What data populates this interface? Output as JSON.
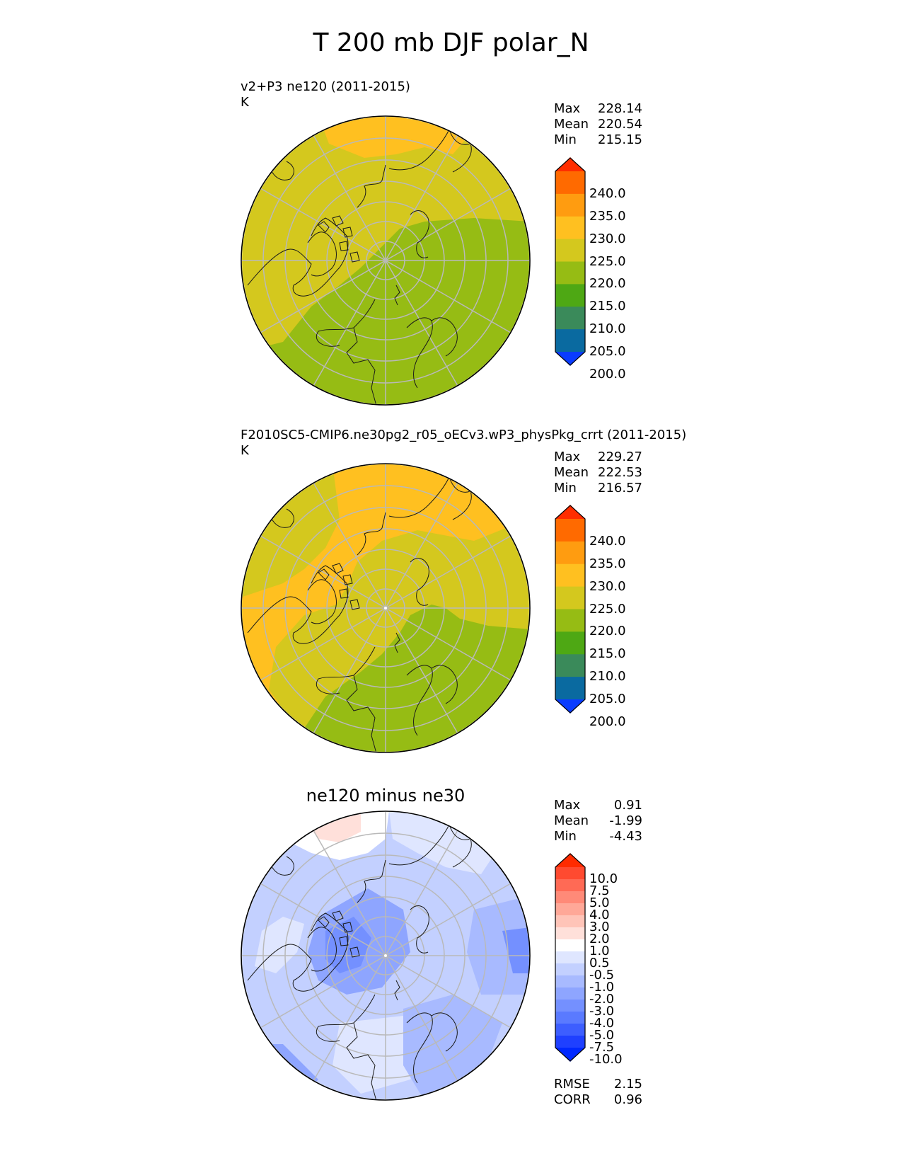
{
  "figure": {
    "title": "T 200 mb DJF polar_N"
  },
  "panels": [
    {
      "title": "v2+P3 ne120 (2011-2015)",
      "units": "K",
      "stats": [
        {
          "label": "Max",
          "value": "228.14"
        },
        {
          "label": "Mean",
          "value": "220.54"
        },
        {
          "label": "Min",
          "value": "215.15"
        }
      ]
    },
    {
      "title": "F2010SC5-CMIP6.ne30pg2_r05_oECv3.wP3_physPkg_crrt (2011-2015)",
      "units": "K",
      "stats": [
        {
          "label": "Max",
          "value": "229.27"
        },
        {
          "label": "Mean",
          "value": "222.53"
        },
        {
          "label": "Min",
          "value": "216.57"
        }
      ]
    },
    {
      "title": "ne120 minus ne30",
      "stats": [
        {
          "label": "Max",
          "value": "0.91"
        },
        {
          "label": "Mean",
          "value": "-1.99"
        },
        {
          "label": "Min",
          "value": "-4.43"
        }
      ],
      "metrics": [
        {
          "label": "RMSE",
          "value": "2.15"
        },
        {
          "label": "CORR",
          "value": "0.96"
        }
      ]
    }
  ],
  "colorbars": {
    "field": {
      "ticks": [
        "240.0",
        "235.0",
        "230.0",
        "225.0",
        "220.0",
        "215.0",
        "210.0",
        "205.0",
        "200.0"
      ],
      "colors_top_to_bottom": [
        "#ff2d00",
        "#ff6a00",
        "#ff9c10",
        "#ffc020",
        "#d4c81e",
        "#96bc14",
        "#4ea814",
        "#3a8a5a",
        "#0a6aa0",
        "#0a3cff"
      ]
    },
    "diff": {
      "ticks": [
        "10.0",
        "7.5",
        "5.0",
        "4.0",
        "3.0",
        "2.0",
        "1.0",
        "0.5",
        "-0.5",
        "-1.0",
        "-2.0",
        "-3.0",
        "-4.0",
        "-5.0",
        "-7.5",
        "-10.0"
      ],
      "colors_top_to_bottom": [
        "#ff2b00",
        "#ff4a30",
        "#ff6a55",
        "#ff8a78",
        "#ffa898",
        "#ffc4b8",
        "#ffe0da",
        "#ffffff",
        "#dfe6ff",
        "#c3d0ff",
        "#a8baff",
        "#8ea5ff",
        "#7490ff",
        "#5a7aff",
        "#3d5eff",
        "#1f40ff",
        "#0028ff"
      ]
    }
  },
  "chart_data": [
    {
      "type": "heatmap",
      "projection": "north polar stereographic",
      "title": "v2+P3 ne120 (2011-2015)",
      "units": "K",
      "levels": [
        200,
        205,
        210,
        215,
        220,
        225,
        230,
        235,
        240
      ],
      "max": 228.14,
      "mean": 220.54,
      "min": 215.15
    },
    {
      "type": "heatmap",
      "projection": "north polar stereographic",
      "title": "F2010SC5-CMIP6.ne30pg2_r05_oECv3.wP3_physPkg_crrt (2011-2015)",
      "units": "K",
      "levels": [
        200,
        205,
        210,
        215,
        220,
        225,
        230,
        235,
        240
      ],
      "max": 229.27,
      "mean": 222.53,
      "min": 216.57
    },
    {
      "type": "heatmap",
      "projection": "north polar stereographic",
      "title": "ne120 minus ne30",
      "levels": [
        -10.0,
        -7.5,
        -5.0,
        -4.0,
        -3.0,
        -2.0,
        -1.0,
        -0.5,
        0.5,
        1.0,
        2.0,
        3.0,
        4.0,
        5.0,
        7.5,
        10.0
      ],
      "max": 0.91,
      "mean": -1.99,
      "min": -4.43,
      "rmse": 2.15,
      "corr": 0.96
    }
  ]
}
